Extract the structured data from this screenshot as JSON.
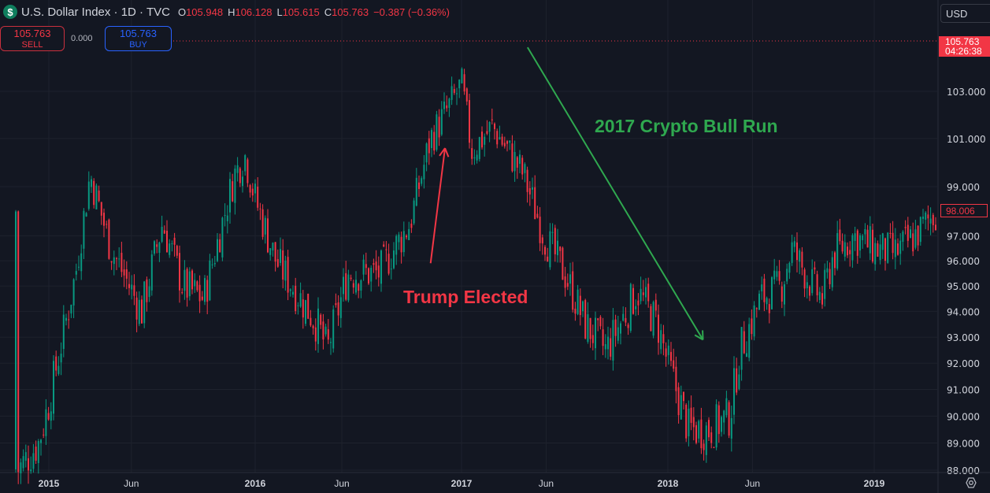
{
  "header": {
    "symbol_icon": "dollar-icon",
    "logo_text": "$",
    "title": "U.S. Dollar Index · 1D · TVC",
    "open_label": "O",
    "open": "105.948",
    "high_label": "H",
    "high": "106.128",
    "low_label": "L",
    "low": "105.615",
    "close_label": "C",
    "close": "105.763",
    "change": "−0.387 (−0.36%)"
  },
  "trade": {
    "sell_price": "105.763",
    "sell_label": "SELL",
    "spread": "0.000",
    "buy_price": "105.763",
    "buy_label": "BUY"
  },
  "price_scale": {
    "currency": "USD",
    "last_price": "105.763",
    "countdown": "04:26:38",
    "current_price": "98.006"
  },
  "colors": {
    "up": "#089981",
    "down": "#f23645",
    "background": "#131722",
    "annotation_red": "#f23645",
    "annotation_green": "#2fa84f"
  },
  "chart_data": {
    "type": "candlestick",
    "title": "U.S. Dollar Index · 1D · TVC",
    "scale": "logarithmic",
    "ylim": [
      88,
      105.763
    ],
    "xlim": [
      2014.84,
      2019.32
    ],
    "y_ticks": [
      "103.000",
      "101.000",
      "99.000",
      "97.000",
      "96.000",
      "95.000",
      "94.000",
      "93.000",
      "92.000",
      "91.000",
      "90.000",
      "89.000",
      "88.000"
    ],
    "y_tick_values": [
      103,
      101,
      99,
      97,
      96,
      95,
      94,
      93,
      92,
      91,
      90,
      89,
      88
    ],
    "x_ticks": [
      {
        "label": "2015",
        "t": 2015.0
      },
      {
        "label": "Jun",
        "t": 2015.4
      },
      {
        "label": "2016",
        "t": 2016.0
      },
      {
        "label": "Jun",
        "t": 2016.42
      },
      {
        "label": "2017",
        "t": 2017.0
      },
      {
        "label": "Jun",
        "t": 2017.41
      },
      {
        "label": "2018",
        "t": 2018.0
      },
      {
        "label": "Jun",
        "t": 2018.41
      },
      {
        "label": "2019",
        "t": 2019.0
      }
    ],
    "close_path": [
      [
        2014.85,
        88.0
      ],
      [
        2014.95,
        89.0
      ],
      [
        2015.0,
        90.5
      ],
      [
        2015.08,
        93.5
      ],
      [
        2015.13,
        95.5
      ],
      [
        2015.2,
        99.5
      ],
      [
        2015.3,
        96.5
      ],
      [
        2015.45,
        94.0
      ],
      [
        2015.55,
        97.5
      ],
      [
        2015.65,
        95.0
      ],
      [
        2015.75,
        94.5
      ],
      [
        2015.9,
        99.5
      ],
      [
        2015.95,
        100.3
      ],
      [
        2016.0,
        98.5
      ],
      [
        2016.1,
        96.0
      ],
      [
        2016.3,
        93.5
      ],
      [
        2016.35,
        92.5
      ],
      [
        2016.45,
        95.5
      ],
      [
        2016.6,
        95.5
      ],
      [
        2016.75,
        97.5
      ],
      [
        2016.85,
        101.0
      ],
      [
        2016.95,
        102.5
      ],
      [
        2017.0,
        103.3
      ],
      [
        2017.05,
        100.5
      ],
      [
        2017.15,
        101.5
      ],
      [
        2017.3,
        99.5
      ],
      [
        2017.4,
        97.0
      ],
      [
        2017.5,
        95.5
      ],
      [
        2017.6,
        93.5
      ],
      [
        2017.7,
        92.5
      ],
      [
        2017.8,
        94.0
      ],
      [
        2017.85,
        94.8
      ],
      [
        2017.95,
        93.5
      ],
      [
        2018.0,
        92.0
      ],
      [
        2018.1,
        89.5
      ],
      [
        2018.2,
        89.5
      ],
      [
        2018.3,
        90.0
      ],
      [
        2018.35,
        92.5
      ],
      [
        2018.45,
        94.5
      ],
      [
        2018.55,
        95.0
      ],
      [
        2018.6,
        96.5
      ],
      [
        2018.7,
        95.0
      ],
      [
        2018.75,
        94.5
      ],
      [
        2018.8,
        96.2
      ],
      [
        2018.9,
        97.0
      ],
      [
        2019.0,
        96.5
      ],
      [
        2019.1,
        96.3
      ],
      [
        2019.2,
        97.0
      ],
      [
        2019.3,
        98.0
      ]
    ],
    "annotations": [
      {
        "text": "Trump Elected",
        "color": "#f23645",
        "arrow_from": [
          2016.85,
          95.9
        ],
        "arrow_to": [
          2016.92,
          100.6
        ]
      },
      {
        "text": "2017 Crypto Bull Run",
        "color": "#2fa84f",
        "arrow_from": [
          2017.32,
          104.9
        ],
        "arrow_to": [
          2018.17,
          92.9
        ]
      }
    ]
  },
  "annotations": {
    "trump": "Trump Elected",
    "crypto": "2017 Crypto Bull Run"
  }
}
